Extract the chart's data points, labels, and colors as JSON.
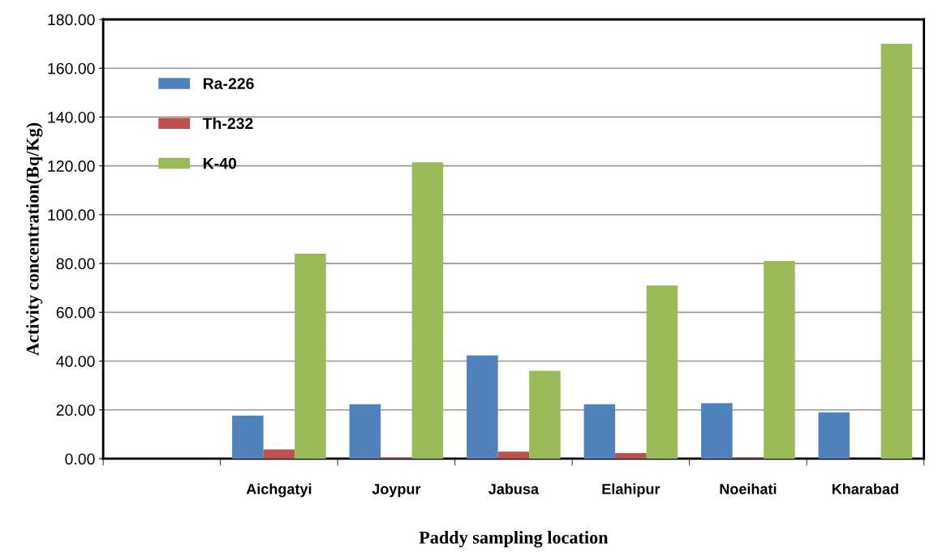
{
  "chart_data": {
    "type": "bar",
    "xlabel": "Paddy sampling location",
    "ylabel": "Activity concentration(Bq/Kg)",
    "categories": [
      null,
      "Aichgatyi",
      "Joypur",
      "Jabusa",
      "Elahipur",
      "Noeihati",
      "Kharabad"
    ],
    "series": [
      {
        "name": "Ra-226",
        "color": "#4f81bd",
        "values": [
          null,
          17.7,
          22.3,
          42.3,
          22.3,
          22.7,
          19.0
        ]
      },
      {
        "name": "Th-232",
        "color": "#c0504d",
        "values": [
          null,
          3.8,
          0.3,
          2.9,
          2.3,
          0.2,
          null
        ]
      },
      {
        "name": "K-40",
        "color": "#9bbb59",
        "values": [
          null,
          84,
          121.5,
          36,
          71,
          81,
          170
        ]
      }
    ],
    "ylim": [
      0,
      180
    ],
    "yticks": [
      {
        "value": 0,
        "label": "0.00"
      },
      {
        "value": 20,
        "label": "20.00"
      },
      {
        "value": 40,
        "label": "40.00"
      },
      {
        "value": 60,
        "label": "60.00"
      },
      {
        "value": 80,
        "label": "80.00"
      },
      {
        "value": 100,
        "label": "100.00"
      },
      {
        "value": 120,
        "label": "120.00"
      },
      {
        "value": 140,
        "label": "140.00"
      },
      {
        "value": 160,
        "label": "160.00"
      },
      {
        "value": 180,
        "label": "180.00"
      }
    ],
    "grid": "y",
    "legend": "top left"
  }
}
